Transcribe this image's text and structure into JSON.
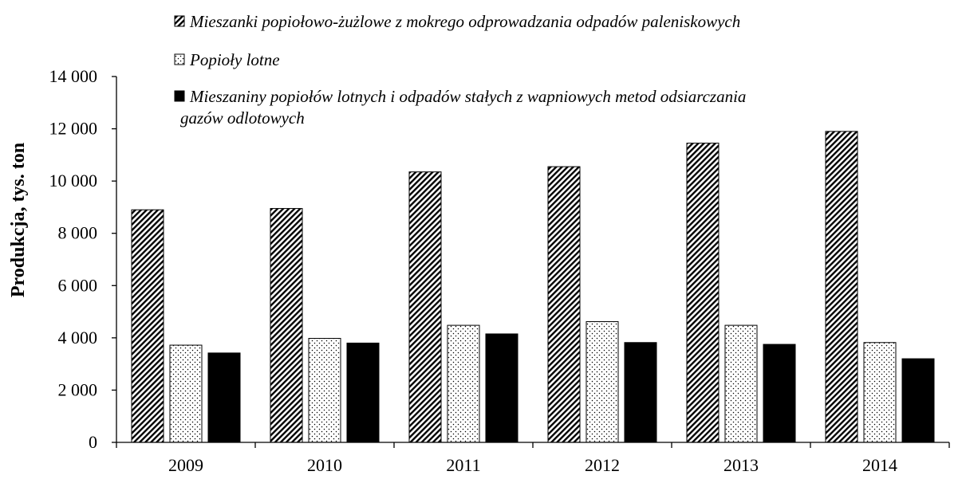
{
  "chart_data": {
    "type": "bar",
    "categories": [
      "2009",
      "2010",
      "2011",
      "2012",
      "2013",
      "2014"
    ],
    "series": [
      {
        "name": "Mieszanki popiołowo-żużlowe z mokrego odprowadzania odpadów paleniskowych",
        "values": [
          8900,
          8950,
          10350,
          10550,
          11450,
          11900
        ],
        "pattern": "diagonal-hatch",
        "color": "#000000"
      },
      {
        "name": "Popioły lotne",
        "values": [
          3720,
          3980,
          4480,
          4620,
          4480,
          3820
        ],
        "pattern": "dots",
        "color": "#ffffff"
      },
      {
        "name": "Mieszaniny popiołów lotnych i odpadów stałych z wapniowych metod odsiarczania gazów odlotowych",
        "legend_lines": [
          "Mieszaniny popiołów lotnych i odpadów stałych z wapniowych metod odsiarczania",
          "gazów odlotowych"
        ],
        "values": [
          3420,
          3800,
          4150,
          3820,
          3750,
          3200
        ],
        "pattern": "solid",
        "color": "#000000"
      }
    ],
    "ylabel": "Produkcja, tys. ton",
    "xlabel": "",
    "ylim": [
      0,
      14000
    ],
    "yticks": [
      0,
      2000,
      4000,
      6000,
      8000,
      10000,
      12000,
      14000
    ],
    "ytick_labels": [
      "0",
      "2 000",
      "4 000",
      "6 000",
      "8 000",
      "10 000",
      "12 000",
      "14 000"
    ],
    "grid": false,
    "legend_position": "top"
  }
}
